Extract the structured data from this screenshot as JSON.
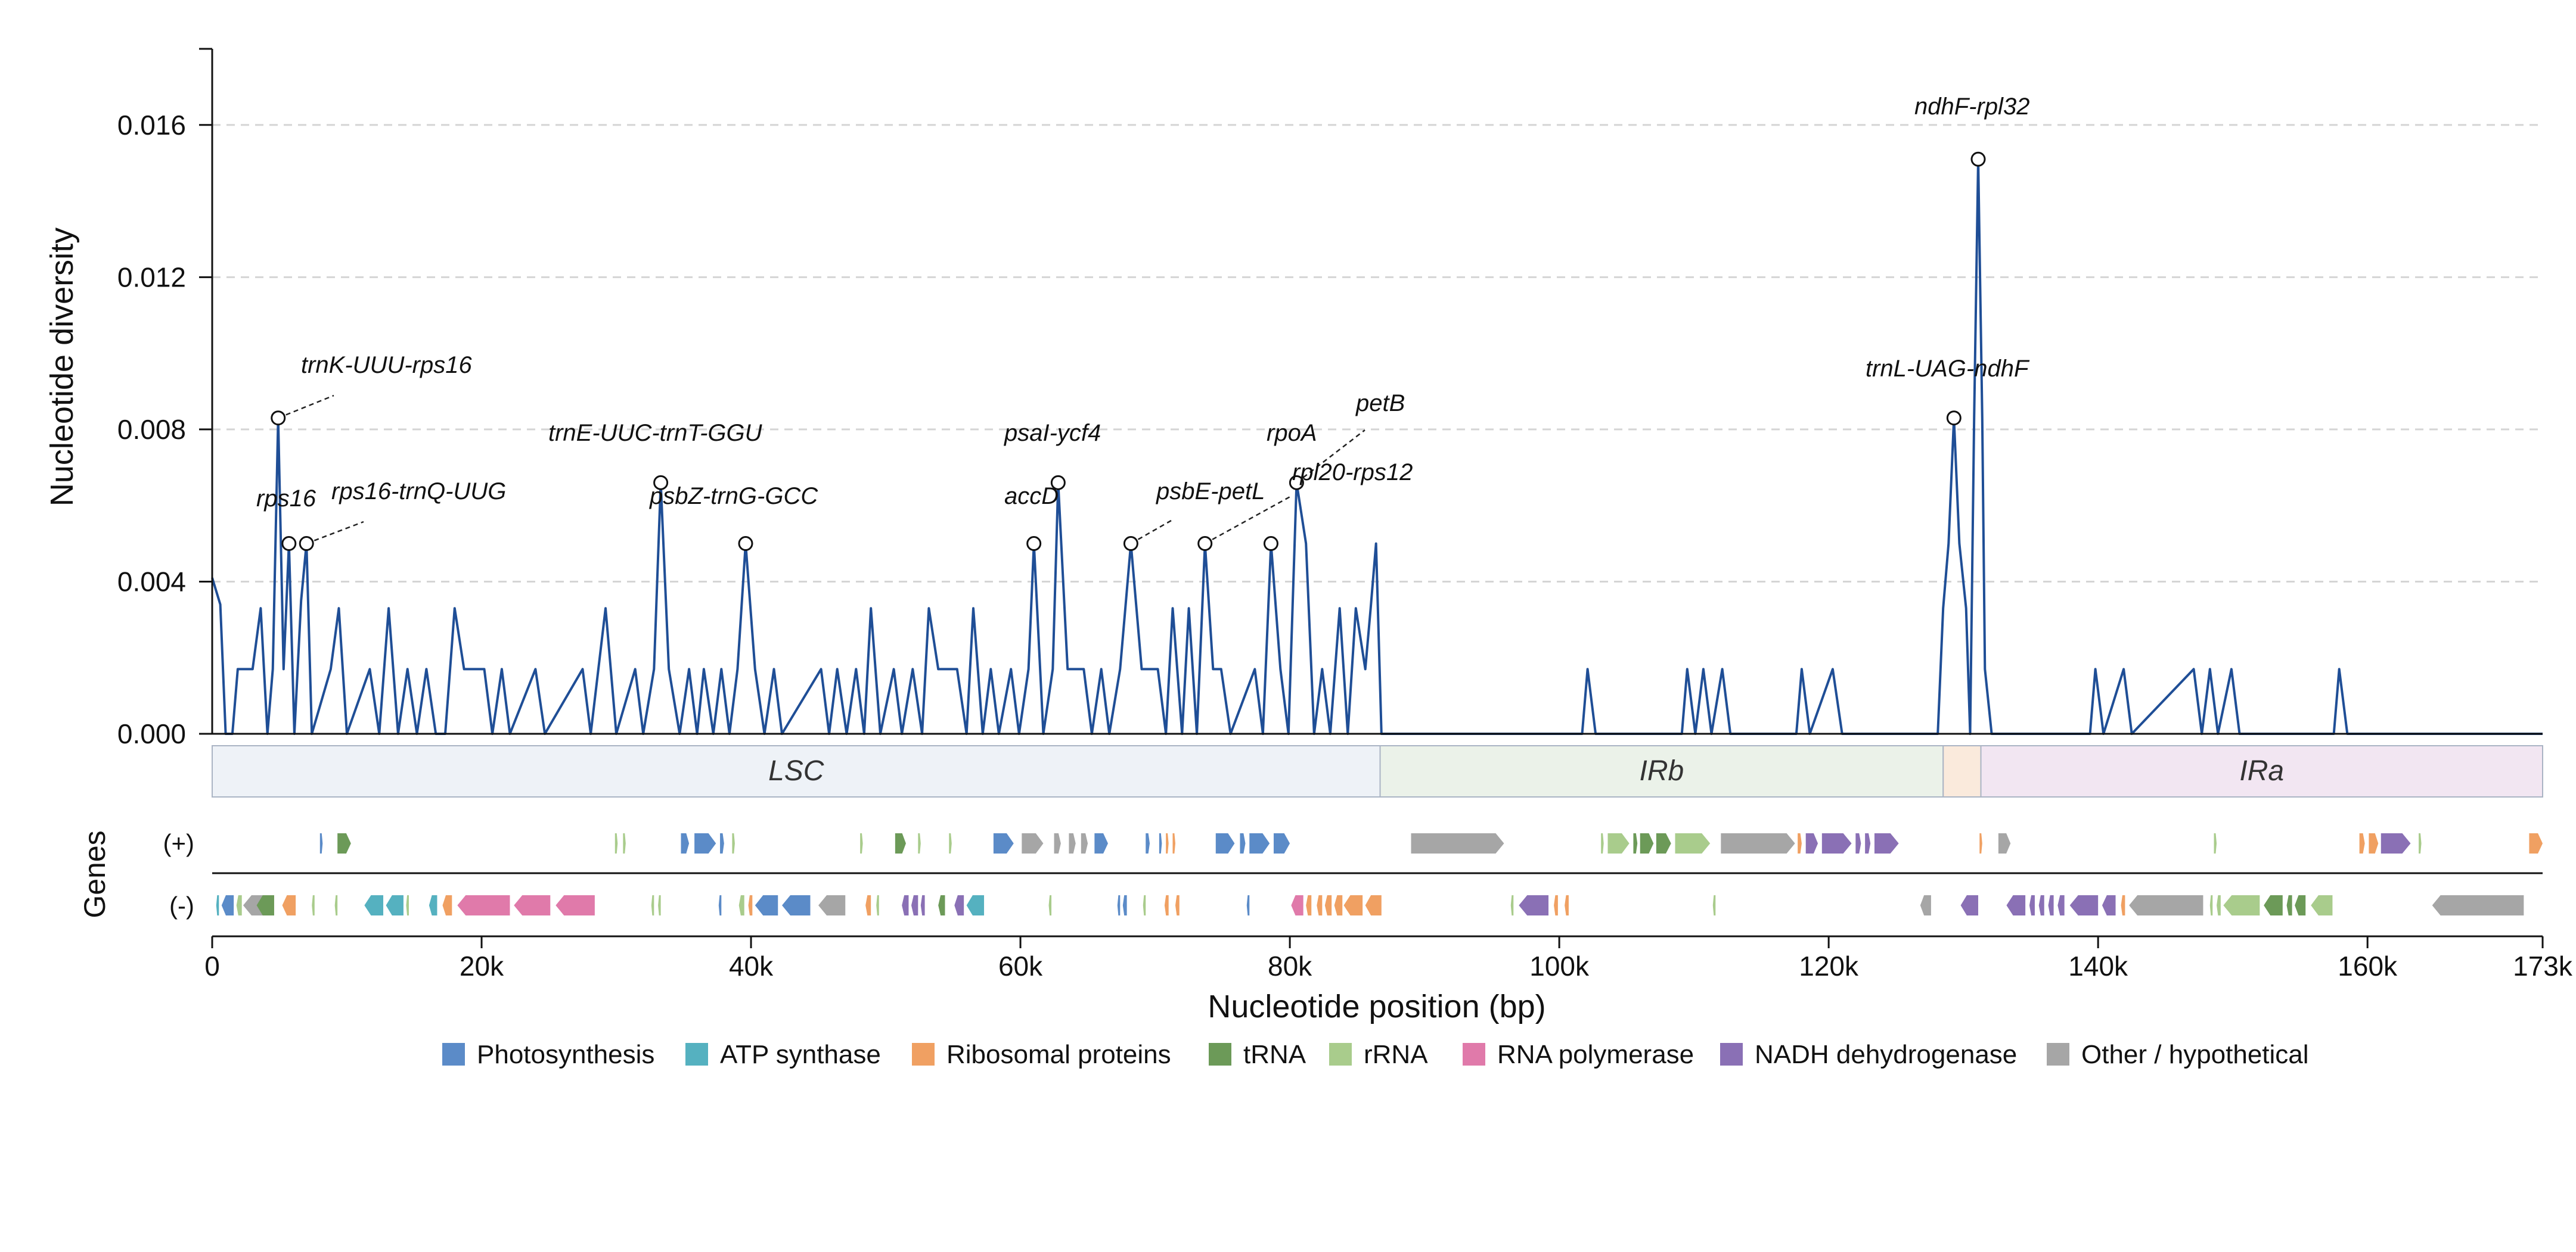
{
  "chart_data": {
    "type": "line",
    "ylabel": "Nucleotide diversity",
    "xlabel": "Nucleotide position (bp)",
    "genes_label": "Genes",
    "strand_plus_label": "(+)",
    "strand_minus_label": "(-)",
    "xlim": [
      0,
      173000
    ],
    "ylim": [
      0,
      0.018
    ],
    "yticks": [
      0.0,
      0.004,
      0.008,
      0.012,
      0.016
    ],
    "ytick_labels": [
      "0.000",
      "0.004",
      "0.008",
      "0.012",
      "0.016"
    ],
    "xticks": [
      0,
      20000,
      40000,
      60000,
      80000,
      100000,
      120000,
      140000,
      160000,
      173000
    ],
    "xtick_labels": [
      "0",
      "20k",
      "40k",
      "60k",
      "80k",
      "100k",
      "120k",
      "140k",
      "160k",
      "173k"
    ],
    "grid": "horizontal dashed",
    "line_color": "#1f4e96",
    "series": [
      {
        "points": [
          [
            0,
            0.0041
          ],
          [
            600,
            0.0034
          ],
          [
            1000,
            0
          ],
          [
            1500,
            0
          ],
          [
            1900,
            0.0017
          ],
          [
            3000,
            0.0017
          ],
          [
            3600,
            0.0033
          ],
          [
            4100,
            0
          ],
          [
            4500,
            0.0017
          ],
          [
            4900,
            0.0083
          ],
          [
            5300,
            0.0017
          ],
          [
            5700,
            0.005
          ],
          [
            6100,
            0
          ],
          [
            6600,
            0.0035
          ],
          [
            7000,
            0.005
          ],
          [
            7400,
            0
          ],
          [
            8800,
            0.0017
          ],
          [
            9400,
            0.0033
          ],
          [
            10000,
            0
          ],
          [
            11700,
            0.0017
          ],
          [
            12400,
            0
          ],
          [
            13100,
            0.0033
          ],
          [
            13800,
            0
          ],
          [
            14500,
            0.0017
          ],
          [
            15200,
            0
          ],
          [
            15900,
            0.0017
          ],
          [
            16600,
            0
          ],
          [
            17300,
            0
          ],
          [
            18000,
            0.0033
          ],
          [
            18700,
            0.0017
          ],
          [
            20200,
            0.0017
          ],
          [
            20800,
            0
          ],
          [
            21500,
            0.0017
          ],
          [
            22100,
            0
          ],
          [
            24000,
            0.0017
          ],
          [
            24700,
            0
          ],
          [
            27500,
            0.0017
          ],
          [
            28100,
            0
          ],
          [
            29200,
            0.0033
          ],
          [
            30000,
            0
          ],
          [
            31400,
            0.0017
          ],
          [
            32000,
            0
          ],
          [
            32800,
            0.0017
          ],
          [
            33300,
            0.0066
          ],
          [
            33900,
            0.0017
          ],
          [
            34700,
            0
          ],
          [
            35400,
            0.0017
          ],
          [
            36000,
            0
          ],
          [
            36500,
            0.0017
          ],
          [
            37200,
            0
          ],
          [
            37800,
            0.0017
          ],
          [
            38400,
            0
          ],
          [
            39000,
            0.0017
          ],
          [
            39600,
            0.005
          ],
          [
            40300,
            0.0017
          ],
          [
            41000,
            0
          ],
          [
            41700,
            0.0017
          ],
          [
            42300,
            0
          ],
          [
            45200,
            0.0017
          ],
          [
            45800,
            0
          ],
          [
            46400,
            0.0017
          ],
          [
            47100,
            0
          ],
          [
            47800,
            0.0017
          ],
          [
            48400,
            0
          ],
          [
            48900,
            0.0033
          ],
          [
            49600,
            0
          ],
          [
            50600,
            0.0017
          ],
          [
            51200,
            0
          ],
          [
            52000,
            0.0017
          ],
          [
            52700,
            0
          ],
          [
            53200,
            0.0033
          ],
          [
            53900,
            0.0017
          ],
          [
            55300,
            0.0017
          ],
          [
            56000,
            0
          ],
          [
            56500,
            0.0033
          ],
          [
            57200,
            0
          ],
          [
            57800,
            0.0017
          ],
          [
            58400,
            0
          ],
          [
            59300,
            0.0017
          ],
          [
            59900,
            0
          ],
          [
            60600,
            0.0017
          ],
          [
            61000,
            0.005
          ],
          [
            61700,
            0
          ],
          [
            62400,
            0.0017
          ],
          [
            62800,
            0.0066
          ],
          [
            63500,
            0.0017
          ],
          [
            64700,
            0.0017
          ],
          [
            65300,
            0
          ],
          [
            66000,
            0.0017
          ],
          [
            66600,
            0
          ],
          [
            67400,
            0.0017
          ],
          [
            68200,
            0.005
          ],
          [
            69000,
            0.0017
          ],
          [
            70200,
            0.0017
          ],
          [
            70800,
            0
          ],
          [
            71300,
            0.0033
          ],
          [
            72000,
            0
          ],
          [
            72500,
            0.0033
          ],
          [
            73100,
            0
          ],
          [
            73700,
            0.005
          ],
          [
            74300,
            0.0017
          ],
          [
            74900,
            0.0017
          ],
          [
            75600,
            0
          ],
          [
            77400,
            0.0017
          ],
          [
            78000,
            0
          ],
          [
            78600,
            0.005
          ],
          [
            79300,
            0.0017
          ],
          [
            79900,
            0
          ],
          [
            80500,
            0.0066
          ],
          [
            81200,
            0.005
          ],
          [
            81800,
            0
          ],
          [
            82400,
            0.0017
          ],
          [
            83000,
            0
          ],
          [
            83700,
            0.0033
          ],
          [
            84300,
            0
          ],
          [
            84900,
            0.0033
          ],
          [
            85600,
            0.0017
          ],
          [
            86000,
            0.0033
          ],
          [
            86400,
            0.005
          ],
          [
            86800,
            0
          ],
          [
            101700,
            0
          ],
          [
            102100,
            0.0017
          ],
          [
            102700,
            0
          ],
          [
            109100,
            0
          ],
          [
            109500,
            0.0017
          ],
          [
            110100,
            0
          ],
          [
            110700,
            0.0017
          ],
          [
            111300,
            0
          ],
          [
            112100,
            0.0017
          ],
          [
            112700,
            0
          ],
          [
            117600,
            0
          ],
          [
            118000,
            0.0017
          ],
          [
            118600,
            0
          ],
          [
            120300,
            0.0017
          ],
          [
            121000,
            0
          ],
          [
            128100,
            0
          ],
          [
            128500,
            0.0033
          ],
          [
            128900,
            0.005
          ],
          [
            129300,
            0.0083
          ],
          [
            129700,
            0.005
          ],
          [
            130200,
            0.0033
          ],
          [
            130500,
            0
          ],
          [
            130800,
            0.0083
          ],
          [
            131100,
            0.0151
          ],
          [
            131400,
            0.0083
          ],
          [
            131600,
            0.0017
          ],
          [
            132100,
            0
          ],
          [
            139400,
            0
          ],
          [
            139800,
            0.0017
          ],
          [
            140400,
            0
          ],
          [
            141900,
            0.0017
          ],
          [
            142500,
            0
          ],
          [
            147100,
            0.0017
          ],
          [
            147700,
            0
          ],
          [
            148300,
            0.0017
          ],
          [
            148900,
            0
          ],
          [
            149900,
            0.0017
          ],
          [
            150500,
            0
          ],
          [
            157500,
            0
          ],
          [
            157900,
            0.0017
          ],
          [
            158500,
            0
          ],
          [
            173000,
            0
          ]
        ]
      }
    ],
    "annotations": [
      {
        "label": "trnK-UUU-rps16",
        "x": 4900,
        "y": 0.0083
      },
      {
        "label": "rps16",
        "x": 5700,
        "y": 0.005
      },
      {
        "label": "rps16-trnQ-UUG",
        "x": 7000,
        "y": 0.005
      },
      {
        "label": "trnE-UUC-trnT-GGU",
        "x": 33300,
        "y": 0.0066
      },
      {
        "label": "psbZ-trnG-GCC",
        "x": 39600,
        "y": 0.005
      },
      {
        "label": "psaI-ycf4",
        "x": 62800,
        "y": 0.0066
      },
      {
        "label": "accD",
        "x": 61000,
        "y": 0.005
      },
      {
        "label": "psbE-petL",
        "x": 68200,
        "y": 0.005
      },
      {
        "label": "rpoA",
        "x": 78600,
        "y": 0.005
      },
      {
        "label": "petB",
        "x": 80500,
        "y": 0.0066
      },
      {
        "label": "rpl20-rps12",
        "x": 73700,
        "y": 0.005
      },
      {
        "label": "trnL-UAG-ndhF",
        "x": 129300,
        "y": 0.0083
      },
      {
        "label": "ndhF-rpl32",
        "x": 131100,
        "y": 0.0151
      }
    ],
    "regions": [
      {
        "label": "LSC",
        "start": 0,
        "end": 86700,
        "color": "#eef2f7"
      },
      {
        "label": "IRb",
        "start": 86700,
        "end": 128500,
        "color": "#ebf2e9"
      },
      {
        "label": "",
        "start": 128500,
        "end": 131300,
        "color": "#faeadc"
      },
      {
        "label": "IRa",
        "start": 131300,
        "end": 173000,
        "color": "#f2e6f2"
      }
    ],
    "gene_categories": [
      {
        "name": "Photosynthesis",
        "color": "#5b8bc8"
      },
      {
        "name": "ATP synthase",
        "color": "#55b1c0"
      },
      {
        "name": "Ribosomal proteins",
        "color": "#f0a062"
      },
      {
        "name": "tRNA",
        "color": "#6c9a58"
      },
      {
        "name": "rRNA",
        "color": "#a9cc8c"
      },
      {
        "name": "RNA polymerase",
        "color": "#e07aaa"
      },
      {
        "name": "NADH dehydrogenase",
        "color": "#8a70b5"
      },
      {
        "name": "Other / hypothetical",
        "color": "#a6a6a6"
      }
    ],
    "genes_plus": [
      [
        8000,
        8200,
        0
      ],
      [
        9300,
        10300,
        3
      ],
      [
        29900,
        30100,
        4
      ],
      [
        30500,
        30700,
        4
      ],
      [
        34800,
        35400,
        0
      ],
      [
        35800,
        37400,
        0
      ],
      [
        37700,
        38000,
        0
      ],
      [
        38600,
        38800,
        4
      ],
      [
        48100,
        48300,
        4
      ],
      [
        50700,
        51500,
        3
      ],
      [
        52400,
        52600,
        4
      ],
      [
        54700,
        54900,
        4
      ],
      [
        58000,
        59500,
        0
      ],
      [
        60100,
        61700,
        7
      ],
      [
        62500,
        63000,
        7
      ],
      [
        63600,
        64100,
        7
      ],
      [
        64500,
        65000,
        7
      ],
      [
        65500,
        66500,
        0
      ],
      [
        69300,
        69600,
        0
      ],
      [
        70300,
        70500,
        0
      ],
      [
        70800,
        71000,
        2
      ],
      [
        71300,
        71500,
        2
      ],
      [
        74500,
        75900,
        0
      ],
      [
        76300,
        76700,
        0
      ],
      [
        77000,
        78500,
        0
      ],
      [
        78800,
        80000,
        0
      ],
      [
        89000,
        95900,
        7
      ],
      [
        103100,
        103300,
        4
      ],
      [
        103600,
        105200,
        4
      ],
      [
        105500,
        105800,
        3
      ],
      [
        106000,
        107000,
        3
      ],
      [
        107200,
        108300,
        3
      ],
      [
        108600,
        111200,
        4
      ],
      [
        112000,
        117500,
        7
      ],
      [
        117700,
        118000,
        2
      ],
      [
        118300,
        119200,
        6
      ],
      [
        119500,
        121700,
        6
      ],
      [
        122000,
        122400,
        6
      ],
      [
        122700,
        123100,
        6
      ],
      [
        123400,
        125200,
        6
      ],
      [
        131200,
        131400,
        2
      ],
      [
        132600,
        133500,
        7
      ],
      [
        148600,
        148800,
        4
      ],
      [
        159400,
        159800,
        2
      ],
      [
        160100,
        160800,
        2
      ],
      [
        161000,
        163200,
        6
      ],
      [
        163800,
        164000,
        4
      ],
      [
        172000,
        173000,
        2
      ]
    ],
    "genes_minus": [
      [
        300,
        500,
        1
      ],
      [
        700,
        1600,
        0
      ],
      [
        1800,
        2200,
        4
      ],
      [
        2300,
        4500,
        7
      ],
      [
        3300,
        4600,
        3
      ],
      [
        5200,
        6200,
        2
      ],
      [
        7400,
        7600,
        4
      ],
      [
        9100,
        9300,
        4
      ],
      [
        11300,
        12700,
        1
      ],
      [
        12900,
        14200,
        1
      ],
      [
        14400,
        14600,
        4
      ],
      [
        16100,
        16700,
        1
      ],
      [
        17100,
        17800,
        2
      ],
      [
        18200,
        22100,
        5
      ],
      [
        22400,
        25100,
        5
      ],
      [
        25500,
        28400,
        5
      ],
      [
        32600,
        32800,
        4
      ],
      [
        33100,
        33300,
        4
      ],
      [
        37600,
        37800,
        0
      ],
      [
        39100,
        39500,
        4
      ],
      [
        39800,
        40100,
        2
      ],
      [
        40300,
        42000,
        0
      ],
      [
        42300,
        44400,
        0
      ],
      [
        45000,
        47000,
        7
      ],
      [
        48500,
        48900,
        2
      ],
      [
        49300,
        49500,
        4
      ],
      [
        51200,
        51700,
        6
      ],
      [
        51900,
        52400,
        6
      ],
      [
        52600,
        52900,
        6
      ],
      [
        53900,
        54400,
        3
      ],
      [
        55100,
        55800,
        6
      ],
      [
        56000,
        57300,
        1
      ],
      [
        62100,
        62300,
        4
      ],
      [
        67200,
        67400,
        0
      ],
      [
        67600,
        67900,
        0
      ],
      [
        69100,
        69300,
        4
      ],
      [
        70700,
        71000,
        2
      ],
      [
        71500,
        71800,
        2
      ],
      [
        76800,
        77000,
        0
      ],
      [
        80100,
        81000,
        5
      ],
      [
        81200,
        81600,
        2
      ],
      [
        82000,
        82400,
        2
      ],
      [
        82600,
        83100,
        2
      ],
      [
        83300,
        83900,
        2
      ],
      [
        84000,
        85400,
        2
      ],
      [
        85600,
        86800,
        2
      ],
      [
        96400,
        96600,
        4
      ],
      [
        97000,
        99200,
        6
      ],
      [
        99600,
        99900,
        2
      ],
      [
        100400,
        100700,
        2
      ],
      [
        111400,
        111600,
        4
      ],
      [
        126800,
        127600,
        7
      ],
      [
        129800,
        131100,
        6
      ],
      [
        133200,
        134600,
        6
      ],
      [
        134900,
        135300,
        6
      ],
      [
        135600,
        136000,
        6
      ],
      [
        136300,
        136700,
        6
      ],
      [
        137000,
        137500,
        6
      ],
      [
        137900,
        140000,
        6
      ],
      [
        140300,
        141300,
        6
      ],
      [
        141700,
        142000,
        2
      ],
      [
        142300,
        147800,
        7
      ],
      [
        148300,
        148500,
        4
      ],
      [
        148800,
        149100,
        4
      ],
      [
        149300,
        152000,
        4
      ],
      [
        152300,
        153700,
        3
      ],
      [
        154000,
        154400,
        3
      ],
      [
        154600,
        155400,
        3
      ],
      [
        155800,
        157400,
        4
      ],
      [
        164800,
        171600,
        7
      ]
    ]
  }
}
